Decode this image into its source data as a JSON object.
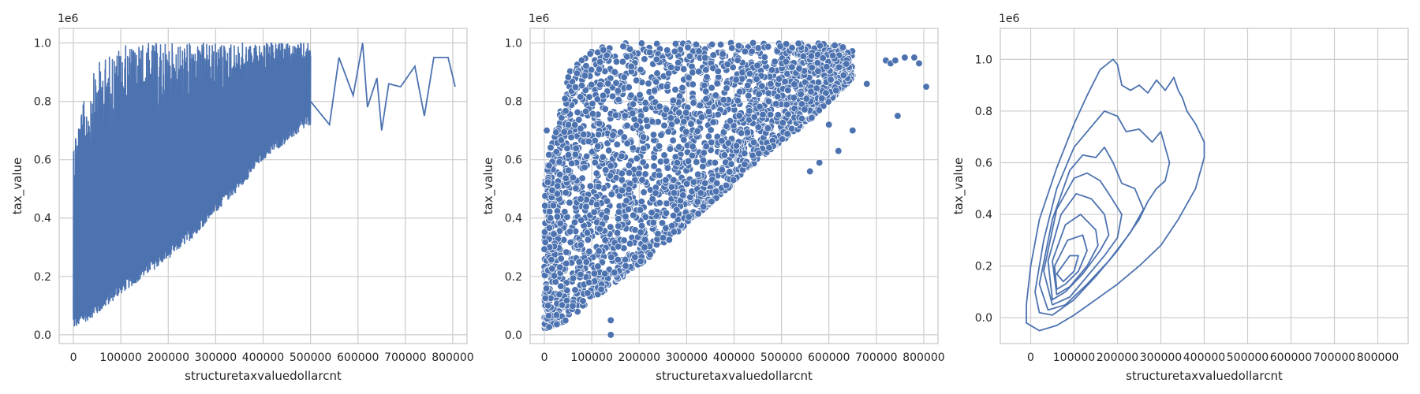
{
  "colors": {
    "series": "#4c72b0",
    "grid": "#cccccc",
    "text": "#262626",
    "background": "#ffffff"
  },
  "chart_data": [
    {
      "type": "line",
      "xlabel": "structuretaxvaluedollarcnt",
      "ylabel": "tax_value",
      "offset_text": "1e6",
      "xlim": [
        -30000,
        830000
      ],
      "ylim": [
        -0.03,
        1.05
      ],
      "grid": true,
      "xticks": [
        "0",
        "100000",
        "200000",
        "300000",
        "400000",
        "500000",
        "600000",
        "700000",
        "800000"
      ],
      "yticks": [
        "0.0",
        "0.2",
        "0.4",
        "0.6",
        "0.8",
        "1.0"
      ],
      "envelope": {
        "x": [
          0,
          50000,
          100000,
          150000,
          200000,
          250000,
          300000,
          350000,
          400000,
          450000,
          500000
        ],
        "lower": [
          0.02,
          0.07,
          0.14,
          0.2,
          0.26,
          0.33,
          0.42,
          0.5,
          0.6,
          0.66,
          0.72
        ],
        "upper": [
          0.7,
          0.93,
          0.99,
          1.0,
          1.0,
          1.0,
          1.0,
          1.0,
          1.0,
          1.0,
          1.0
        ]
      },
      "tail": {
        "x": [
          500000,
          540000,
          560000,
          590000,
          610000,
          620000,
          640000,
          650000,
          665000,
          690000,
          720000,
          740000,
          760000,
          790000,
          805000
        ],
        "y": [
          0.8,
          0.72,
          0.95,
          0.82,
          1.0,
          0.78,
          0.88,
          0.7,
          0.86,
          0.85,
          0.92,
          0.75,
          0.95,
          0.95,
          0.85
        ]
      }
    },
    {
      "type": "scatter",
      "xlabel": "structuretaxvaluedollarcnt",
      "ylabel": "tax_value",
      "offset_text": "1e6",
      "xlim": [
        -30000,
        830000
      ],
      "ylim": [
        -0.03,
        1.05
      ],
      "grid": true,
      "xticks": [
        "0",
        "100000",
        "200000",
        "300000",
        "400000",
        "500000",
        "600000",
        "700000",
        "800000"
      ],
      "yticks": [
        "0.0",
        "0.2",
        "0.4",
        "0.6",
        "0.8",
        "1.0"
      ],
      "cloud": {
        "x": [
          0,
          50000,
          100000,
          150000,
          200000,
          250000,
          300000,
          350000,
          400000,
          450000,
          500000,
          550000,
          600000,
          650000
        ],
        "lower": [
          0.02,
          0.05,
          0.12,
          0.18,
          0.24,
          0.3,
          0.38,
          0.45,
          0.52,
          0.6,
          0.66,
          0.72,
          0.8,
          0.88
        ],
        "upper": [
          0.55,
          0.9,
          0.98,
          1.0,
          1.0,
          1.0,
          1.0,
          1.0,
          1.0,
          1.0,
          1.0,
          1.0,
          1.0,
          0.98
        ]
      },
      "outliers": {
        "x": [
          5000,
          10000,
          140000,
          140000,
          560000,
          580000,
          600000,
          620000,
          650000,
          680000,
          720000,
          730000,
          740000,
          745000,
          760000,
          780000,
          790000,
          805000
        ],
        "y": [
          0.7,
          0.58,
          0.05,
          0.0,
          0.56,
          0.59,
          0.72,
          0.63,
          0.7,
          0.86,
          0.94,
          0.93,
          0.94,
          0.75,
          0.95,
          0.95,
          0.93,
          0.85
        ]
      }
    },
    {
      "type": "kde",
      "xlabel": "structuretaxvaluedollarcnt",
      "ylabel": "tax_value",
      "offset_text": "1e6",
      "xlim": [
        -70000,
        870000
      ],
      "ylim": [
        -0.1,
        1.12
      ],
      "grid": true,
      "xticks": [
        "0",
        "100000",
        "200000",
        "300000",
        "400000",
        "500000",
        "600000",
        "700000",
        "800000"
      ],
      "yticks": [
        "0.0",
        "0.2",
        "0.4",
        "0.6",
        "0.8",
        "1.0"
      ],
      "contours": [
        {
          "x": [
            -10000,
            0,
            20000,
            60000,
            100000,
            130000,
            160000,
            190000,
            200000,
            210000,
            230000,
            250000,
            270000,
            290000,
            310000,
            330000,
            340000,
            350000,
            360000,
            380000,
            400000,
            400000,
            380000,
            340000,
            300000,
            250000,
            200000,
            150000,
            100000,
            60000,
            20000,
            -10000
          ],
          "y": [
            0.05,
            0.2,
            0.38,
            0.58,
            0.75,
            0.86,
            0.96,
            1.0,
            0.98,
            0.9,
            0.88,
            0.9,
            0.87,
            0.92,
            0.88,
            0.93,
            0.88,
            0.85,
            0.8,
            0.75,
            0.68,
            0.62,
            0.5,
            0.38,
            0.28,
            0.2,
            0.13,
            0.07,
            0.01,
            -0.03,
            -0.05,
            -0.02
          ]
        },
        {
          "x": [
            10000,
            30000,
            60000,
            100000,
            140000,
            170000,
            200000,
            220000,
            250000,
            280000,
            300000,
            320000,
            310000,
            290000,
            270000,
            250000,
            200000,
            150000,
            100000,
            50000,
            20000,
            10000
          ],
          "y": [
            0.1,
            0.3,
            0.5,
            0.66,
            0.74,
            0.8,
            0.78,
            0.72,
            0.73,
            0.68,
            0.72,
            0.6,
            0.53,
            0.5,
            0.45,
            0.38,
            0.26,
            0.16,
            0.07,
            0.01,
            0.02,
            0.1
          ]
        },
        {
          "x": [
            20000,
            50000,
            90000,
            120000,
            150000,
            170000,
            190000,
            210000,
            240000,
            260000,
            230000,
            180000,
            130000,
            80000,
            40000,
            20000
          ],
          "y": [
            0.13,
            0.38,
            0.57,
            0.63,
            0.62,
            0.66,
            0.6,
            0.52,
            0.5,
            0.42,
            0.33,
            0.22,
            0.13,
            0.05,
            0.03,
            0.13
          ]
        },
        {
          "x": [
            30000,
            60000,
            100000,
            130000,
            160000,
            180000,
            210000,
            200000,
            170000,
            130000,
            90000,
            50000,
            30000
          ],
          "y": [
            0.18,
            0.42,
            0.54,
            0.56,
            0.53,
            0.48,
            0.4,
            0.31,
            0.24,
            0.16,
            0.08,
            0.05,
            0.18
          ]
        },
        {
          "x": [
            40000,
            70000,
            105000,
            140000,
            170000,
            180000,
            160000,
            120000,
            80000,
            50000,
            40000
          ],
          "y": [
            0.22,
            0.4,
            0.48,
            0.46,
            0.4,
            0.32,
            0.26,
            0.17,
            0.1,
            0.07,
            0.22
          ]
        },
        {
          "x": [
            50000,
            80000,
            115000,
            150000,
            155000,
            130000,
            90000,
            60000,
            50000
          ],
          "y": [
            0.22,
            0.36,
            0.4,
            0.34,
            0.28,
            0.2,
            0.12,
            0.09,
            0.22
          ]
        },
        {
          "x": [
            55000,
            85000,
            120000,
            130000,
            110000,
            80000,
            60000,
            55000
          ],
          "y": [
            0.2,
            0.3,
            0.32,
            0.26,
            0.18,
            0.13,
            0.11,
            0.2
          ]
        },
        {
          "x": [
            60000,
            90000,
            110000,
            100000,
            75000,
            60000
          ],
          "y": [
            0.17,
            0.24,
            0.24,
            0.18,
            0.14,
            0.17
          ]
        }
      ]
    }
  ]
}
